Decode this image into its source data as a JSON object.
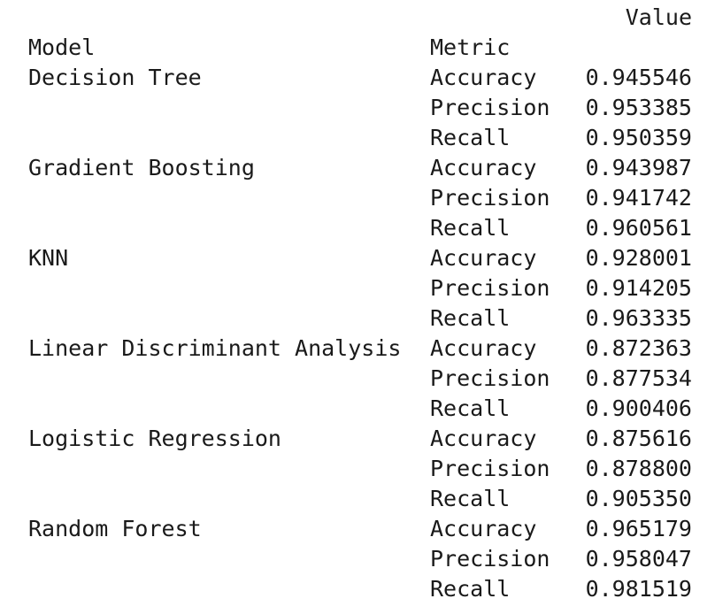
{
  "header": {
    "value_label": "Value",
    "model_label": "Model",
    "metric_label": "Metric"
  },
  "rows": [
    {
      "model": "Decision Tree",
      "metric": "Accuracy",
      "value": "0.945546"
    },
    {
      "model": "",
      "metric": "Precision",
      "value": "0.953385"
    },
    {
      "model": "",
      "metric": "Recall",
      "value": "0.950359"
    },
    {
      "model": "Gradient Boosting",
      "metric": "Accuracy",
      "value": "0.943987"
    },
    {
      "model": "",
      "metric": "Precision",
      "value": "0.941742"
    },
    {
      "model": "",
      "metric": "Recall",
      "value": "0.960561"
    },
    {
      "model": "KNN",
      "metric": "Accuracy",
      "value": "0.928001"
    },
    {
      "model": "",
      "metric": "Precision",
      "value": "0.914205"
    },
    {
      "model": "",
      "metric": "Recall",
      "value": "0.963335"
    },
    {
      "model": "Linear Discriminant Analysis",
      "metric": "Accuracy",
      "value": "0.872363"
    },
    {
      "model": "",
      "metric": "Precision",
      "value": "0.877534"
    },
    {
      "model": "",
      "metric": "Recall",
      "value": "0.900406"
    },
    {
      "model": "Logistic Regression",
      "metric": "Accuracy",
      "value": "0.875616"
    },
    {
      "model": "",
      "metric": "Precision",
      "value": "0.878800"
    },
    {
      "model": "",
      "metric": "Recall",
      "value": "0.905350"
    },
    {
      "model": "Random Forest",
      "metric": "Accuracy",
      "value": "0.965179"
    },
    {
      "model": "",
      "metric": "Precision",
      "value": "0.958047"
    },
    {
      "model": "",
      "metric": "Recall",
      "value": "0.981519"
    }
  ]
}
